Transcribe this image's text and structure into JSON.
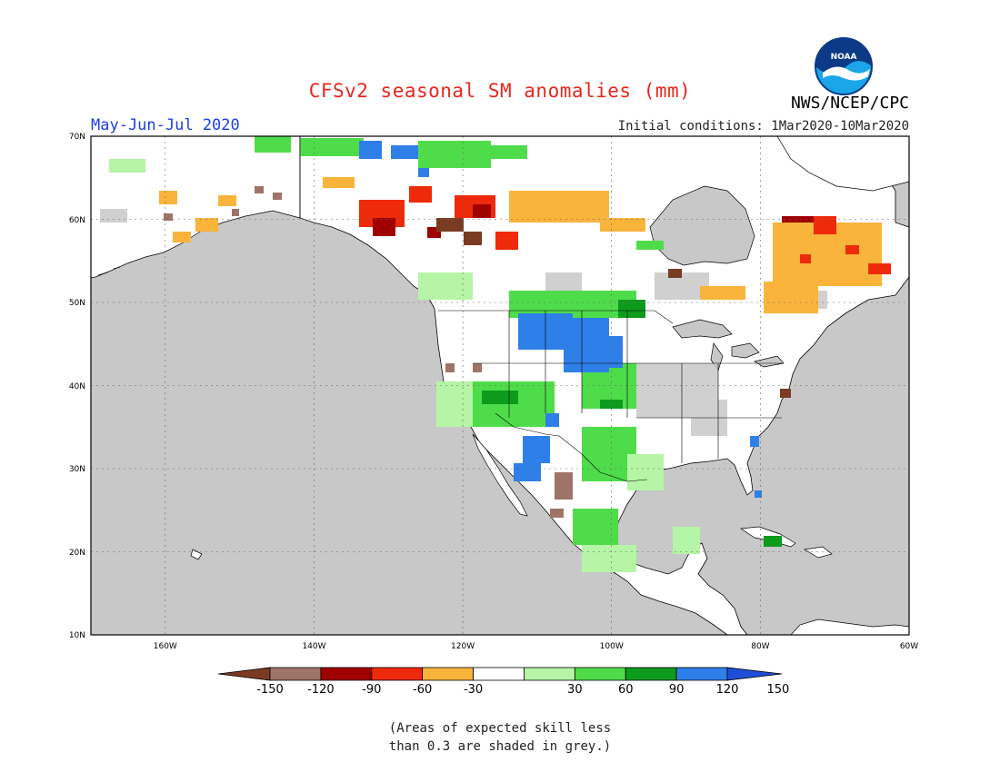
{
  "header": {
    "title": "CFSv2 seasonal SM anomalies (mm)",
    "period": "May-Jun-Jul 2020",
    "initial_conditions": "Initial conditions: 1Mar2020-10Mar2020",
    "agency": "NWS/NCEP/CPC",
    "logo_text": "NOAA"
  },
  "map": {
    "lat_ticks": [
      "70N",
      "60N",
      "50N",
      "40N",
      "30N",
      "20N",
      "10N"
    ],
    "lon_ticks": [
      "160W",
      "140W",
      "120W",
      "100W",
      "80W",
      "60W"
    ],
    "lat_range": [
      10,
      70
    ],
    "lon_range": [
      -170,
      -60
    ],
    "ocean_color": "#c8c8c8",
    "land_color": "#ffffff"
  },
  "colorbar": {
    "labels": [
      "-150",
      "-120",
      "-90",
      "-60",
      "-30",
      "30",
      "60",
      "90",
      "120",
      "150"
    ],
    "colors": [
      "#7a3b22",
      "#9e7468",
      "#a10000",
      "#ee2a0a",
      "#f9b43c",
      "#ffffff",
      "#b5f5a5",
      "#4fdc4a",
      "#0c9b1c",
      "#2f7fe8",
      "#1f4fd8"
    ]
  },
  "footnote": {
    "line1": "(Areas of expected skill less",
    "line2": "than 0.3 are shaded in grey.)"
  }
}
